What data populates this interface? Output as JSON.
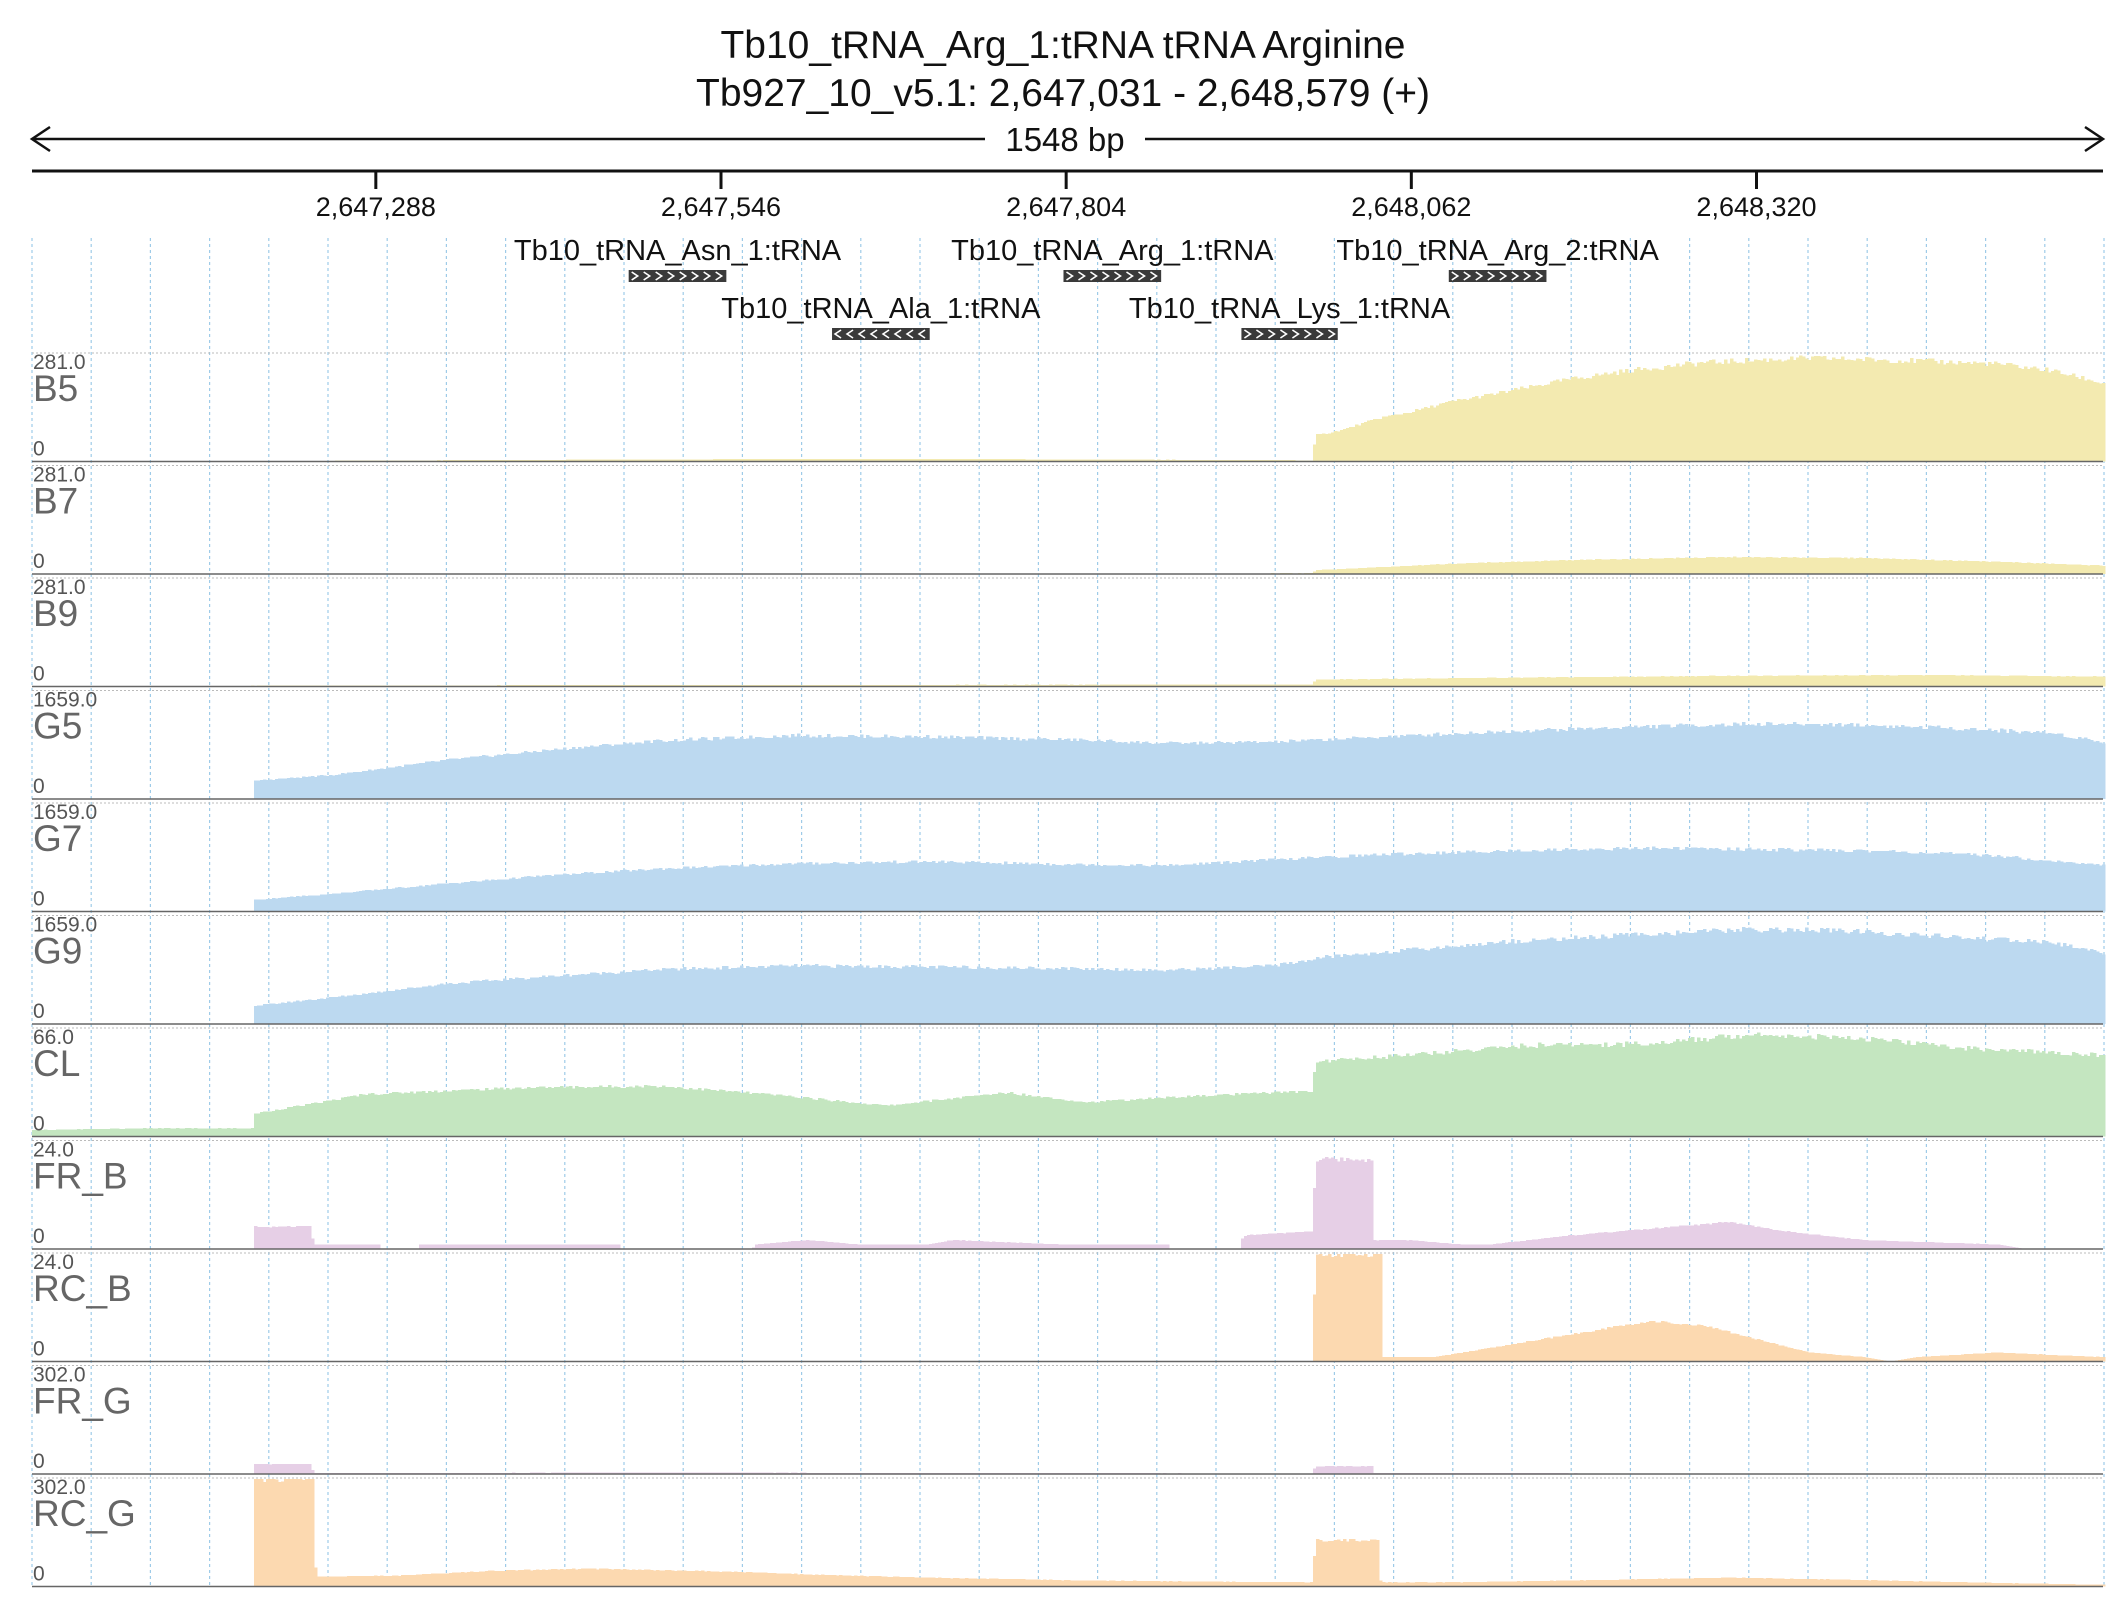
{
  "header": {
    "title": "Tb10_tRNA_Arg_1:tRNA  tRNA Arginine",
    "location": "Tb927_10_v5.1: 2,647,031 - 2,648,579 (+)",
    "span_label": "1548 bp"
  },
  "chart_data": {
    "type": "area",
    "x_range": [
      2647031,
      2648579
    ],
    "ticks": [
      {
        "value": 2647288,
        "label": "2,647,288"
      },
      {
        "value": 2647546,
        "label": "2,647,546"
      },
      {
        "value": 2647804,
        "label": "2,647,804"
      },
      {
        "value": 2648062,
        "label": "2,648,062"
      },
      {
        "value": 2648320,
        "label": "2,648,320"
      }
    ],
    "features": [
      {
        "label": "Tb10_tRNA_Asn_1:tRNA",
        "start": 2647477,
        "end": 2647550,
        "strand": "+",
        "row": 0
      },
      {
        "label": "Tb10_tRNA_Arg_1:tRNA",
        "start": 2647802,
        "end": 2647875,
        "strand": "+",
        "row": 0
      },
      {
        "label": "Tb10_tRNA_Arg_2:tRNA",
        "start": 2648090,
        "end": 2648163,
        "strand": "+",
        "row": 0
      },
      {
        "label": "Tb10_tRNA_Ala_1:tRNA",
        "start": 2647629,
        "end": 2647702,
        "strand": "-",
        "row": 1
      },
      {
        "label": "Tb10_tRNA_Lys_1:tRNA",
        "start": 2647935,
        "end": 2648007,
        "strand": "+",
        "row": 1
      }
    ],
    "grid": true,
    "tracks": [
      {
        "name": "B5",
        "max": "281.0",
        "min_label": "0",
        "color": "#f3eab0",
        "ymax": 281,
        "points": [
          [
            2647031,
            0
          ],
          [
            2647200,
            1
          ],
          [
            2647380,
            4
          ],
          [
            2647550,
            6
          ],
          [
            2647700,
            7
          ],
          [
            2647820,
            5
          ],
          [
            2647940,
            4
          ],
          [
            2647989,
            3
          ],
          [
            2647990,
            68
          ],
          [
            2648010,
            82
          ],
          [
            2648040,
            115
          ],
          [
            2648060,
            128
          ],
          [
            2648090,
            155
          ],
          [
            2648130,
            180
          ],
          [
            2648180,
            215
          ],
          [
            2648230,
            240
          ],
          [
            2648280,
            258
          ],
          [
            2648320,
            265
          ],
          [
            2648360,
            270
          ],
          [
            2648400,
            267
          ],
          [
            2648450,
            262
          ],
          [
            2648500,
            255
          ],
          [
            2648540,
            238
          ],
          [
            2648579,
            205
          ]
        ]
      },
      {
        "name": "B7",
        "max": "281.0",
        "min_label": "0",
        "color": "#f3eab0",
        "ymax": 281,
        "points": [
          [
            2647031,
            0
          ],
          [
            2647500,
            1
          ],
          [
            2647989,
            2
          ],
          [
            2647990,
            10
          ],
          [
            2648100,
            28
          ],
          [
            2648200,
            38
          ],
          [
            2648300,
            44
          ],
          [
            2648400,
            42
          ],
          [
            2648500,
            32
          ],
          [
            2648579,
            22
          ]
        ]
      },
      {
        "name": "B9",
        "max": "281.0",
        "min_label": "0",
        "color": "#f3eab0",
        "ymax": 281,
        "points": [
          [
            2647031,
            0
          ],
          [
            2647200,
            2
          ],
          [
            2647500,
            4
          ],
          [
            2647989,
            5
          ],
          [
            2647990,
            18
          ],
          [
            2648100,
            22
          ],
          [
            2648300,
            28
          ],
          [
            2648450,
            30
          ],
          [
            2648579,
            26
          ]
        ]
      },
      {
        "name": "G5",
        "max": "1659.0",
        "min_label": "0",
        "color": "#bcd9f0",
        "ymax": 1659,
        "points": [
          [
            2647031,
            0
          ],
          [
            2647196,
            0
          ],
          [
            2647197,
            280
          ],
          [
            2647260,
            380
          ],
          [
            2647340,
            600
          ],
          [
            2647420,
            760
          ],
          [
            2647500,
            900
          ],
          [
            2647600,
            980
          ],
          [
            2647700,
            960
          ],
          [
            2647800,
            920
          ],
          [
            2647880,
            860
          ],
          [
            2647960,
            880
          ],
          [
            2648040,
            960
          ],
          [
            2648140,
            1050
          ],
          [
            2648240,
            1120
          ],
          [
            2648320,
            1160
          ],
          [
            2648380,
            1150
          ],
          [
            2648460,
            1100
          ],
          [
            2648540,
            1020
          ],
          [
            2648579,
            880
          ]
        ]
      },
      {
        "name": "G7",
        "max": "1659.0",
        "min_label": "0",
        "color": "#bcd9f0",
        "ymax": 1659,
        "points": [
          [
            2647031,
            0
          ],
          [
            2647196,
            0
          ],
          [
            2647197,
            180
          ],
          [
            2647260,
            280
          ],
          [
            2647340,
            430
          ],
          [
            2647420,
            560
          ],
          [
            2647500,
            660
          ],
          [
            2647600,
            740
          ],
          [
            2647700,
            770
          ],
          [
            2647800,
            730
          ],
          [
            2647880,
            710
          ],
          [
            2647960,
            800
          ],
          [
            2648040,
            880
          ],
          [
            2648140,
            940
          ],
          [
            2648240,
            980
          ],
          [
            2648320,
            960
          ],
          [
            2648420,
            930
          ],
          [
            2648500,
            860
          ],
          [
            2648579,
            710
          ]
        ]
      },
      {
        "name": "G9",
        "max": "1659.0",
        "min_label": "0",
        "color": "#bcd9f0",
        "ymax": 1659,
        "points": [
          [
            2647031,
            0
          ],
          [
            2647196,
            0
          ],
          [
            2647197,
            280
          ],
          [
            2647260,
            420
          ],
          [
            2647340,
            620
          ],
          [
            2647420,
            740
          ],
          [
            2647500,
            840
          ],
          [
            2647600,
            900
          ],
          [
            2647700,
            880
          ],
          [
            2647800,
            860
          ],
          [
            2647880,
            830
          ],
          [
            2647960,
            900
          ],
          [
            2648000,
            1040
          ],
          [
            2648060,
            1140
          ],
          [
            2648140,
            1280
          ],
          [
            2648240,
            1390
          ],
          [
            2648320,
            1460
          ],
          [
            2648380,
            1440
          ],
          [
            2648460,
            1350
          ],
          [
            2648540,
            1260
          ],
          [
            2648579,
            1100
          ]
        ]
      },
      {
        "name": "CL",
        "max": "66.0",
        "min_label": "0",
        "color": "#c4e6c0",
        "ymax": 66,
        "points": [
          [
            2647031,
            4
          ],
          [
            2647120,
            5
          ],
          [
            2647196,
            5
          ],
          [
            2647197,
            14
          ],
          [
            2647240,
            20
          ],
          [
            2647280,
            26
          ],
          [
            2647400,
            30
          ],
          [
            2647500,
            31
          ],
          [
            2647580,
            26
          ],
          [
            2647670,
            19
          ],
          [
            2647760,
            27
          ],
          [
            2647820,
            21
          ],
          [
            2647880,
            24
          ],
          [
            2647960,
            27
          ],
          [
            2647989,
            28
          ],
          [
            2647990,
            46
          ],
          [
            2648060,
            50
          ],
          [
            2648150,
            56
          ],
          [
            2648240,
            57
          ],
          [
            2648320,
            63
          ],
          [
            2648400,
            60
          ],
          [
            2648480,
            54
          ],
          [
            2648579,
            50
          ]
        ]
      },
      {
        "name": "FR_B",
        "max": "24.0",
        "min_label": "0",
        "color": "#e6cfe6",
        "ymax": 24,
        "points": [
          [
            2647031,
            0
          ],
          [
            2647196,
            0
          ],
          [
            2647197,
            5
          ],
          [
            2647240,
            5
          ],
          [
            2647241,
            1
          ],
          [
            2647290,
            1
          ],
          [
            2647291,
            0
          ],
          [
            2647320,
            0
          ],
          [
            2647321,
            1
          ],
          [
            2647470,
            1
          ],
          [
            2647471,
            0
          ],
          [
            2647570,
            0
          ],
          [
            2647571,
            1
          ],
          [
            2647610,
            2
          ],
          [
            2647650,
            1
          ],
          [
            2647700,
            1
          ],
          [
            2647720,
            2
          ],
          [
            2647800,
            1
          ],
          [
            2647880,
            1
          ],
          [
            2647881,
            0
          ],
          [
            2647935,
            0
          ],
          [
            2647936,
            3
          ],
          [
            2647989,
            4
          ],
          [
            2647990,
            20
          ],
          [
            2648033,
            20
          ],
          [
            2648034,
            2
          ],
          [
            2648060,
            2
          ],
          [
            2648100,
            1
          ],
          [
            2648120,
            1
          ],
          [
            2648180,
            3
          ],
          [
            2648260,
            5
          ],
          [
            2648300,
            6
          ],
          [
            2648340,
            4
          ],
          [
            2648400,
            2
          ],
          [
            2648500,
            1
          ],
          [
            2648520,
            0
          ],
          [
            2648579,
            0
          ]
        ]
      },
      {
        "name": "RC_B",
        "max": "24.0",
        "min_label": "0",
        "color": "#fcd9b0",
        "ymax": 24,
        "points": [
          [
            2647031,
            0
          ],
          [
            2647989,
            0
          ],
          [
            2647990,
            24
          ],
          [
            2648039,
            24
          ],
          [
            2648040,
            1
          ],
          [
            2648080,
            1
          ],
          [
            2648120,
            3
          ],
          [
            2648180,
            6
          ],
          [
            2648240,
            9
          ],
          [
            2648280,
            8
          ],
          [
            2648320,
            5
          ],
          [
            2648360,
            2
          ],
          [
            2648400,
            1
          ],
          [
            2648420,
            0
          ],
          [
            2648440,
            1
          ],
          [
            2648500,
            2
          ],
          [
            2648579,
            1
          ]
        ]
      },
      {
        "name": "FR_G",
        "max": "302.0",
        "min_label": "0",
        "color": "#e6cfe6",
        "ymax": 302,
        "points": [
          [
            2647031,
            0
          ],
          [
            2647196,
            0
          ],
          [
            2647197,
            28
          ],
          [
            2647240,
            28
          ],
          [
            2647241,
            3
          ],
          [
            2647300,
            3
          ],
          [
            2647500,
            4
          ],
          [
            2647700,
            3
          ],
          [
            2647900,
            2
          ],
          [
            2647989,
            2
          ],
          [
            2647990,
            22
          ],
          [
            2648033,
            22
          ],
          [
            2648034,
            3
          ],
          [
            2648200,
            2
          ],
          [
            2648400,
            1
          ],
          [
            2648579,
            0
          ]
        ]
      },
      {
        "name": "RC_G",
        "max": "302.0",
        "min_label": "0",
        "color": "#fcd9b0",
        "ymax": 302,
        "points": [
          [
            2647031,
            0
          ],
          [
            2647196,
            0
          ],
          [
            2647197,
            302
          ],
          [
            2647242,
            302
          ],
          [
            2647243,
            28
          ],
          [
            2647300,
            30
          ],
          [
            2647380,
            45
          ],
          [
            2647450,
            50
          ],
          [
            2647550,
            42
          ],
          [
            2647620,
            33
          ],
          [
            2647700,
            25
          ],
          [
            2647800,
            18
          ],
          [
            2647900,
            14
          ],
          [
            2647989,
            12
          ],
          [
            2647990,
            130
          ],
          [
            2648038,
            130
          ],
          [
            2648039,
            12
          ],
          [
            2648100,
            12
          ],
          [
            2648200,
            18
          ],
          [
            2648300,
            25
          ],
          [
            2648400,
            18
          ],
          [
            2648500,
            10
          ],
          [
            2648579,
            5
          ]
        ]
      }
    ]
  }
}
